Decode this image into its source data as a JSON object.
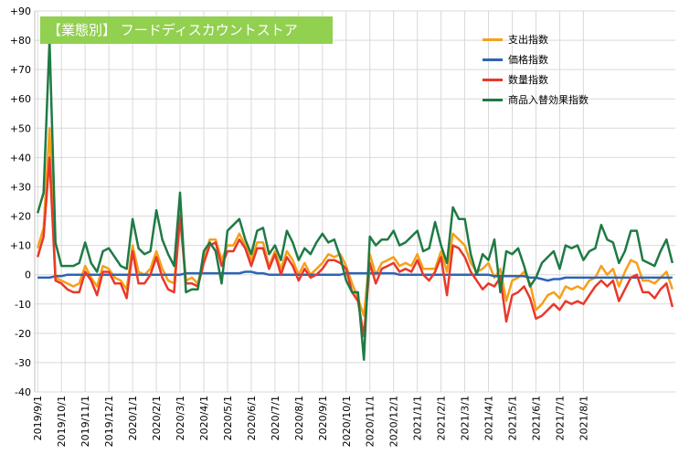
{
  "colors": {
    "spending": "#f5a01a",
    "price": "#2e64b4",
    "quantity": "#e8392b",
    "substitution": "#1f7a45",
    "badge": "#92d050",
    "grid": "#d9d9d9"
  },
  "chart_data": {
    "type": "line",
    "title": "【業態別】 フードディスカウントストア",
    "xlabel": "",
    "ylabel": "",
    "ylim": [
      -40,
      90
    ],
    "y_ticks": [
      "+90",
      "+80",
      "+70",
      "+60",
      "+50",
      "+40",
      "+30",
      "+20",
      "+10",
      "0",
      "-10",
      "-20",
      "-30",
      "-40"
    ],
    "y_tick_values": [
      90,
      80,
      70,
      60,
      50,
      40,
      30,
      20,
      10,
      0,
      -10,
      -20,
      -30,
      -40
    ],
    "x_tick_labels": [
      "2019/9/1",
      "2019/10/1",
      "2019/11/1",
      "2019/12/1",
      "2020/1/1",
      "2020/2/1",
      "2020/3/1",
      "2020/4/1",
      "2020/5/1",
      "2020/6/1",
      "2020/7/1",
      "2020/8/1",
      "2020/9/1",
      "2020/10/1",
      "2020/11/1",
      "2020/12/1",
      "2021/1/1",
      "2021/2/1",
      "2021/3/1",
      "2021/4/1",
      "2021/5/1",
      "2021/6/1",
      "2021/7/1",
      "2021/8/1"
    ],
    "points_per_month": 4,
    "grid": true,
    "legend_position": "top-right",
    "series": [
      {
        "name": "支出指数",
        "color": "#f5a01a",
        "values": [
          9,
          16,
          50,
          -1,
          -2,
          -3,
          -4,
          -3,
          3,
          -1,
          -4,
          3,
          2,
          -1,
          -2,
          -5,
          10,
          1,
          0,
          2,
          8,
          2,
          -2,
          -3,
          22,
          -2,
          -1,
          -3,
          5,
          12,
          12,
          5,
          10,
          10,
          14,
          10,
          5,
          11,
          11,
          3,
          8,
          2,
          8,
          5,
          0,
          4,
          0,
          2,
          4,
          7,
          6,
          7,
          3,
          -3,
          -8,
          -14,
          7,
          0,
          4,
          5,
          6,
          3,
          4,
          3,
          7,
          2,
          2,
          2,
          8,
          1,
          14,
          12,
          10,
          4,
          1,
          2,
          4,
          -1,
          2,
          -9,
          -2,
          -1,
          1,
          -3,
          -12,
          -10,
          -7,
          -6,
          -8,
          -4,
          -5,
          -4,
          -5,
          -2,
          -1,
          3,
          0,
          2,
          -4,
          1,
          5,
          4,
          -2,
          -2,
          -3,
          -1,
          1,
          -5
        ],
        "_note": ""
      },
      {
        "name": "価格指数",
        "color": "#2e64b4",
        "values": [
          -1,
          -1,
          -1,
          -0.5,
          -0.5,
          0,
          0,
          0,
          0,
          0,
          0,
          0,
          0,
          0,
          0,
          0,
          0,
          0,
          0,
          0,
          0,
          0,
          0,
          0,
          0,
          0.5,
          0.5,
          0.5,
          0.5,
          0.5,
          0.5,
          0.5,
          0.5,
          0.5,
          0.5,
          1,
          1,
          0.5,
          0.5,
          0,
          0,
          0,
          0,
          0,
          0,
          0,
          0,
          0,
          0,
          0,
          0,
          0,
          0.5,
          0.5,
          0.5,
          0.5,
          0.5,
          0.5,
          0.5,
          0.5,
          0.5,
          0,
          0,
          0,
          0,
          0,
          0,
          0,
          0,
          0,
          0,
          0,
          0,
          0,
          0,
          0,
          0,
          -0.5,
          -0.5,
          -0.5,
          -0.5,
          -0.5,
          -0.5,
          -1,
          -1,
          -1.5,
          -2,
          -1.5,
          -1.5,
          -1,
          -1,
          -1,
          -1,
          -1,
          -1,
          -1,
          -1,
          -1,
          -1,
          -1,
          -1,
          -1,
          -1,
          -1,
          -1,
          -1,
          -1,
          -1
        ]
      },
      {
        "name": "数量指数",
        "color": "#e8392b",
        "values": [
          6,
          13,
          40,
          -2,
          -3,
          -5,
          -6,
          -6,
          1,
          -2,
          -7,
          1,
          1,
          -3,
          -3,
          -8,
          8,
          -3,
          -3,
          0,
          6,
          -1,
          -5,
          -6,
          20,
          -3,
          -3,
          -4,
          4,
          10,
          11,
          3,
          8,
          8,
          12,
          9,
          3,
          9,
          9,
          2,
          7,
          0,
          6,
          3,
          -2,
          2,
          -1,
          0,
          2,
          5,
          5,
          4,
          2,
          -6,
          -9,
          -21,
          4,
          -3,
          2,
          3,
          4,
          1,
          2,
          1,
          5,
          0,
          -2,
          1,
          6,
          -7,
          10,
          9,
          6,
          1,
          -2,
          -5,
          -3,
          -4,
          -1,
          -16,
          -7,
          -6,
          -4,
          -8,
          -15,
          -14,
          -12,
          -10,
          -12,
          -9,
          -10,
          -9,
          -10,
          -7,
          -4,
          -2,
          -4,
          -2,
          -9,
          -5,
          -1,
          0,
          -6,
          -6,
          -8,
          -5,
          -3,
          -11
        ]
      },
      {
        "name": "商品入替効果指数",
        "color": "#1f7a45",
        "values": [
          21,
          28,
          80,
          11,
          3,
          3,
          3,
          4,
          11,
          4,
          1,
          8,
          9,
          6,
          3,
          2,
          19,
          9,
          7,
          8,
          22,
          12,
          7,
          3,
          28,
          -6,
          -5,
          -5,
          8,
          11,
          8,
          -3,
          15,
          17,
          19,
          12,
          7,
          15,
          16,
          7,
          10,
          5,
          15,
          11,
          5,
          9,
          7,
          11,
          14,
          11,
          12,
          6,
          -2,
          -6,
          -6,
          -29,
          13,
          10,
          12,
          12,
          15,
          10,
          11,
          13,
          15,
          8,
          9,
          18,
          10,
          4,
          23,
          19,
          19,
          7,
          0,
          7,
          5,
          12,
          -6,
          8,
          7,
          9,
          3,
          -4,
          -1,
          4,
          6,
          8,
          2,
          10,
          9,
          10,
          5,
          8,
          9,
          17,
          12,
          11,
          4,
          8,
          15,
          15,
          5,
          4,
          3,
          8,
          12,
          4
        ]
      }
    ]
  }
}
